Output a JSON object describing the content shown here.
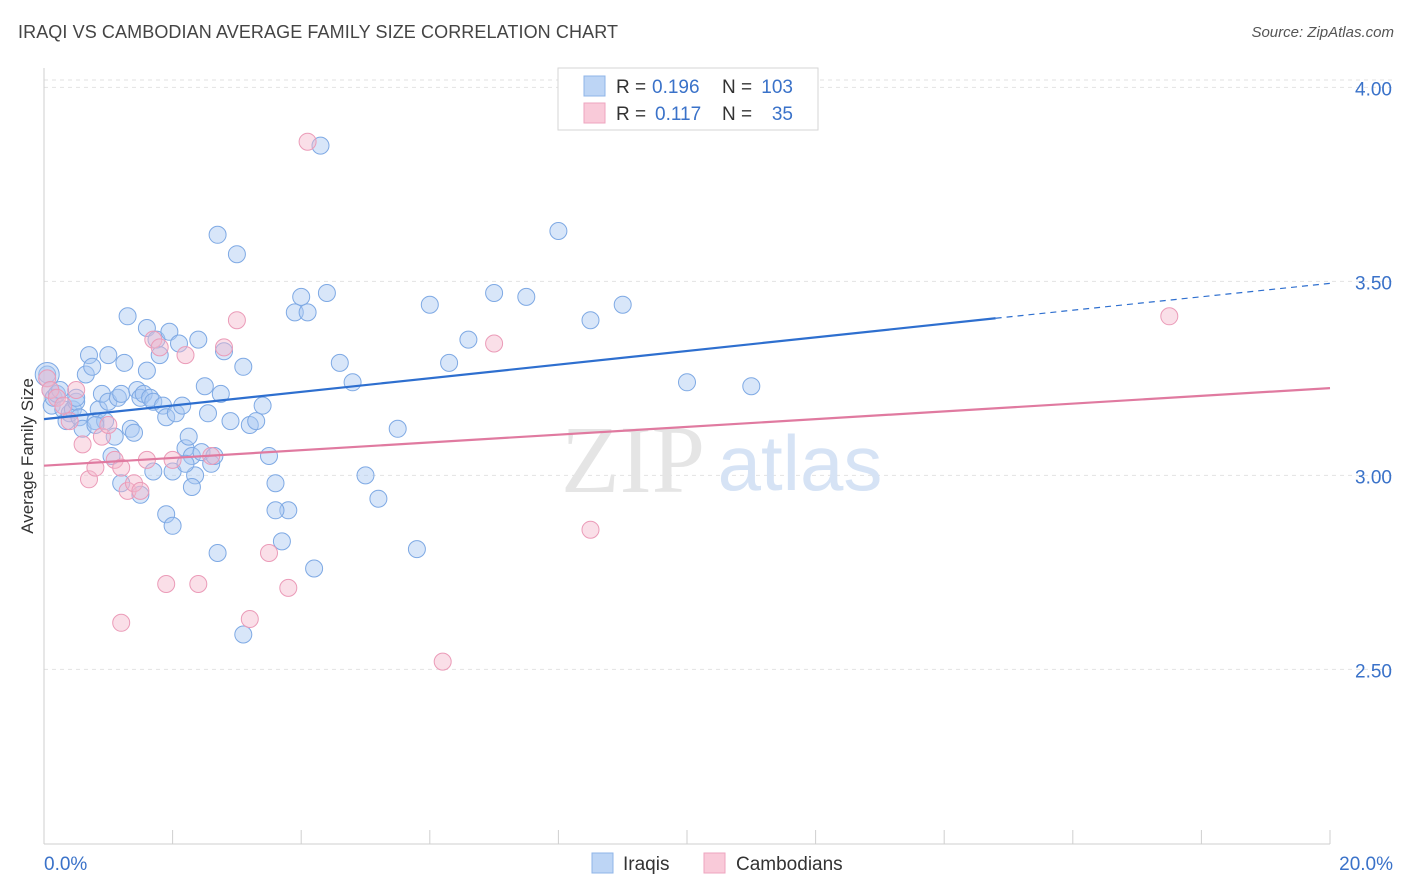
{
  "title": "IRAQI VS CAMBODIAN AVERAGE FAMILY SIZE CORRELATION CHART",
  "source": "Source: ZipAtlas.com",
  "watermark": {
    "zip": "ZIP",
    "atlas": "atlas"
  },
  "chart_data": {
    "type": "scatter",
    "ylabel": "Average Family Size",
    "xlim": [
      0.0,
      20.0
    ],
    "ylim": [
      2.05,
      4.05
    ],
    "x_tick_labels": [
      "0.0%",
      "20.0%"
    ],
    "y_ticks": [
      {
        "value": 4.0,
        "label": "4.00"
      },
      {
        "value": 3.5,
        "label": "3.50"
      },
      {
        "value": 3.0,
        "label": "3.00"
      },
      {
        "value": 2.5,
        "label": "2.50"
      }
    ],
    "legend_stats": [
      {
        "r_label": "R =",
        "r_value": "0.196",
        "n_label": "N =",
        "n_value": "103"
      },
      {
        "r_label": "R =",
        "r_value": "0.117",
        "n_label": "N =",
        "n_value": "35"
      }
    ],
    "series": [
      {
        "name": "Iraqis",
        "color": "#a9c8f2",
        "line_color": "#2e6fcf",
        "trend": {
          "x0": 0.0,
          "y0": 3.145,
          "x1": 14.8,
          "y1": 3.405,
          "x_dash_end": 20.0,
          "y_dash_end": 3.495
        },
        "points": [
          [
            0.05,
            3.26
          ],
          [
            0.1,
            3.22
          ],
          [
            0.12,
            3.18
          ],
          [
            0.15,
            3.2
          ],
          [
            0.2,
            3.21
          ],
          [
            0.25,
            3.22
          ],
          [
            0.3,
            3.17
          ],
          [
            0.35,
            3.14
          ],
          [
            0.4,
            3.16
          ],
          [
            0.45,
            3.17
          ],
          [
            0.5,
            3.19
          ],
          [
            0.55,
            3.15
          ],
          [
            0.6,
            3.12
          ],
          [
            0.65,
            3.26
          ],
          [
            0.7,
            3.31
          ],
          [
            0.75,
            3.28
          ],
          [
            0.8,
            3.14
          ],
          [
            0.85,
            3.17
          ],
          [
            0.9,
            3.21
          ],
          [
            0.95,
            3.14
          ],
          [
            1.0,
            3.31
          ],
          [
            1.0,
            3.19
          ],
          [
            1.05,
            3.05
          ],
          [
            1.1,
            3.1
          ],
          [
            1.15,
            3.2
          ],
          [
            1.2,
            3.21
          ],
          [
            1.25,
            3.29
          ],
          [
            1.3,
            3.41
          ],
          [
            1.35,
            3.12
          ],
          [
            1.4,
            3.11
          ],
          [
            1.45,
            3.22
          ],
          [
            1.5,
            3.2
          ],
          [
            1.55,
            3.21
          ],
          [
            1.6,
            3.38
          ],
          [
            1.65,
            3.2
          ],
          [
            1.7,
            3.19
          ],
          [
            1.75,
            3.35
          ],
          [
            1.8,
            3.31
          ],
          [
            1.85,
            3.18
          ],
          [
            1.9,
            3.15
          ],
          [
            1.95,
            3.37
          ],
          [
            2.0,
            3.01
          ],
          [
            2.05,
            3.16
          ],
          [
            2.1,
            3.34
          ],
          [
            2.15,
            3.18
          ],
          [
            2.2,
            3.07
          ],
          [
            2.25,
            3.1
          ],
          [
            2.3,
            3.05
          ],
          [
            2.35,
            3.0
          ],
          [
            2.4,
            3.35
          ],
          [
            2.45,
            3.06
          ],
          [
            2.5,
            3.23
          ],
          [
            2.55,
            3.16
          ],
          [
            2.6,
            3.03
          ],
          [
            2.65,
            3.05
          ],
          [
            2.7,
            3.62
          ],
          [
            2.75,
            3.21
          ],
          [
            2.8,
            3.32
          ],
          [
            2.9,
            3.14
          ],
          [
            3.0,
            3.57
          ],
          [
            3.1,
            3.28
          ],
          [
            3.2,
            3.13
          ],
          [
            3.3,
            3.14
          ],
          [
            3.4,
            3.18
          ],
          [
            3.5,
            3.05
          ],
          [
            3.6,
            2.98
          ],
          [
            3.7,
            2.83
          ],
          [
            3.8,
            2.91
          ],
          [
            3.9,
            3.42
          ],
          [
            4.0,
            3.46
          ],
          [
            4.1,
            3.42
          ],
          [
            4.3,
            3.85
          ],
          [
            4.4,
            3.47
          ],
          [
            4.6,
            3.29
          ],
          [
            4.8,
            3.24
          ],
          [
            5.0,
            3.0
          ],
          [
            5.2,
            2.94
          ],
          [
            5.5,
            3.12
          ],
          [
            5.8,
            2.81
          ],
          [
            6.0,
            3.44
          ],
          [
            6.3,
            3.29
          ],
          [
            6.6,
            3.35
          ],
          [
            7.0,
            3.47
          ],
          [
            7.5,
            3.46
          ],
          [
            8.0,
            3.63
          ],
          [
            8.5,
            3.4
          ],
          [
            9.0,
            3.44
          ],
          [
            10.0,
            3.24
          ],
          [
            11.0,
            3.23
          ],
          [
            0.8,
            3.13
          ],
          [
            1.9,
            2.9
          ],
          [
            2.3,
            2.97
          ],
          [
            2.7,
            2.8
          ],
          [
            3.1,
            2.59
          ],
          [
            3.6,
            2.91
          ],
          [
            4.2,
            2.76
          ],
          [
            1.5,
            2.95
          ],
          [
            1.7,
            3.01
          ],
          [
            2.2,
            3.03
          ],
          [
            0.5,
            3.2
          ],
          [
            1.2,
            2.98
          ],
          [
            1.6,
            3.27
          ],
          [
            2.0,
            2.87
          ]
        ]
      },
      {
        "name": "Cambodians",
        "color": "#f5b8cb",
        "line_color": "#e07aa0",
        "trend": {
          "x0": 0.0,
          "y0": 3.025,
          "x1": 20.0,
          "y1": 3.225
        },
        "points": [
          [
            0.05,
            3.25
          ],
          [
            0.1,
            3.22
          ],
          [
            0.2,
            3.2
          ],
          [
            0.3,
            3.18
          ],
          [
            0.4,
            3.14
          ],
          [
            0.5,
            3.22
          ],
          [
            0.6,
            3.08
          ],
          [
            0.7,
            2.99
          ],
          [
            0.8,
            3.02
          ],
          [
            0.9,
            3.1
          ],
          [
            1.0,
            3.13
          ],
          [
            1.1,
            3.04
          ],
          [
            1.2,
            3.02
          ],
          [
            1.3,
            2.96
          ],
          [
            1.4,
            2.98
          ],
          [
            1.5,
            2.96
          ],
          [
            1.6,
            3.04
          ],
          [
            1.7,
            3.35
          ],
          [
            1.8,
            3.33
          ],
          [
            1.9,
            2.72
          ],
          [
            2.0,
            3.04
          ],
          [
            2.2,
            3.31
          ],
          [
            2.4,
            2.72
          ],
          [
            2.6,
            3.05
          ],
          [
            2.8,
            3.33
          ],
          [
            3.0,
            3.4
          ],
          [
            3.2,
            2.63
          ],
          [
            3.5,
            2.8
          ],
          [
            3.8,
            2.71
          ],
          [
            4.1,
            3.86
          ],
          [
            6.2,
            2.52
          ],
          [
            7.0,
            3.34
          ],
          [
            8.5,
            2.86
          ],
          [
            17.5,
            3.41
          ],
          [
            1.2,
            2.62
          ]
        ]
      }
    ]
  }
}
